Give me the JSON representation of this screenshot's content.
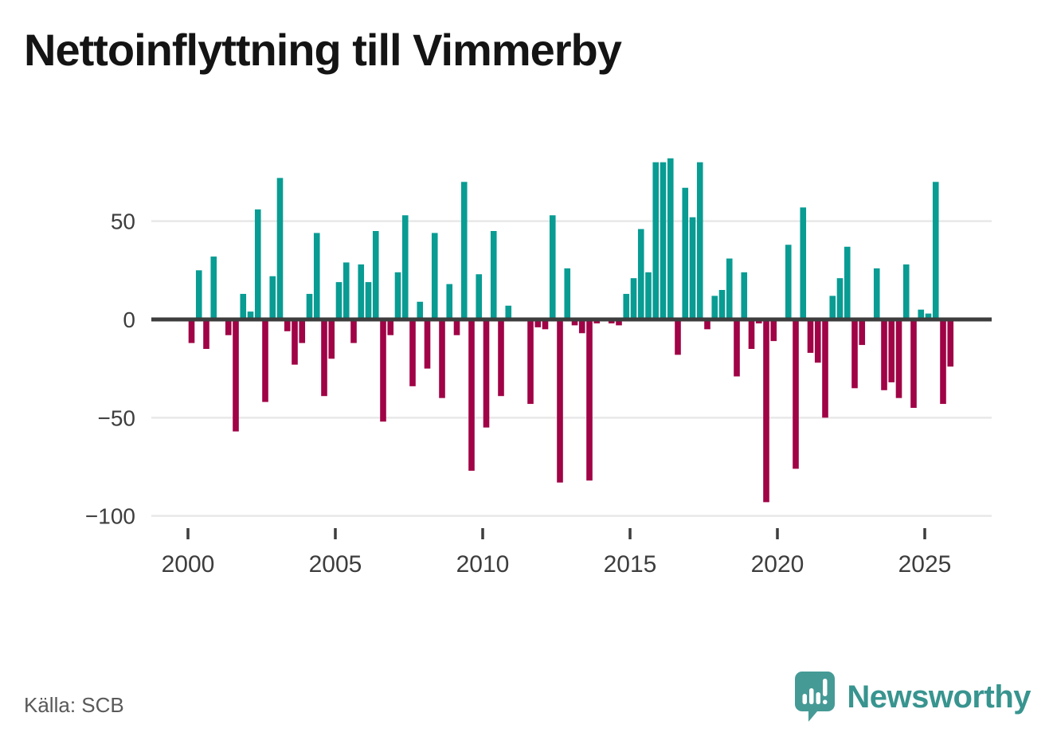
{
  "title": "Nettoinflyttning till Vimmerby",
  "footer": {
    "source": "Källa: SCB",
    "brand": "Newsworthy"
  },
  "colors": {
    "positive": "#089c93",
    "negative": "#a00346",
    "axis_line": "#3d3d3d",
    "grid_line": "#e8e8e8",
    "tick_text": "#3d3d3d",
    "title_text": "#141414",
    "source_text": "#595959",
    "brand_teal": "#459a96"
  },
  "chart_data": {
    "type": "bar",
    "title": "Nettoinflyttning till Vimmerby",
    "frequency": "quarterly",
    "start_year": 2000,
    "end": "2025Q4",
    "series": [
      {
        "name": "Nettoinflyttning",
        "values": [
          -12,
          25,
          -15,
          32,
          0,
          -8,
          -57,
          13,
          4,
          56,
          -42,
          22,
          72,
          -6,
          -23,
          -12,
          13,
          44,
          -39,
          -20,
          19,
          29,
          -12,
          28,
          19,
          45,
          -52,
          -8,
          24,
          53,
          -34,
          9,
          -25,
          44,
          -40,
          18,
          -8,
          70,
          -77,
          23,
          -55,
          45,
          -39,
          7,
          0,
          0,
          -43,
          -4,
          -5,
          53,
          -83,
          26,
          -3,
          -7,
          -82,
          -2,
          0,
          -2,
          -3,
          13,
          21,
          46,
          24,
          80,
          80,
          82,
          -18,
          67,
          52,
          80,
          -5,
          12,
          15,
          31,
          -29,
          24,
          -15,
          -2,
          -93,
          -11,
          0,
          38,
          -76,
          57,
          -17,
          -22,
          -50,
          12,
          21,
          37,
          -35,
          -13,
          0,
          26,
          -36,
          -32,
          -40,
          28,
          -45,
          5,
          3,
          70,
          -43,
          -24
        ]
      }
    ],
    "yticks": [
      50,
      0,
      -50,
      -100
    ],
    "ytick_labels": [
      "50",
      "0",
      "−50",
      "−100"
    ],
    "xticks": [
      2000,
      2005,
      2010,
      2015,
      2020,
      2025
    ],
    "ylim": [
      -100,
      85
    ],
    "grid": true,
    "legend": "none"
  }
}
